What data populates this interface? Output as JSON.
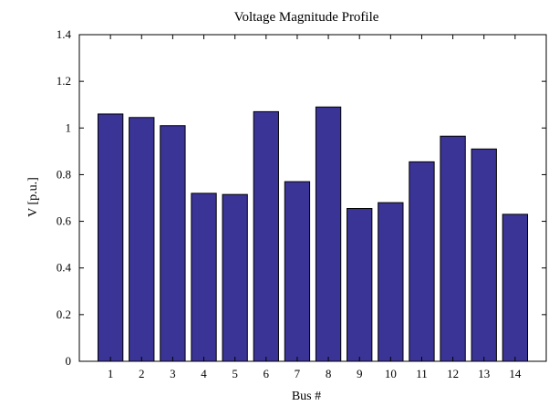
{
  "chart_data": {
    "type": "bar",
    "title": "Voltage Magnitude Profile",
    "xlabel": "Bus #",
    "ylabel": "V [p.u.]",
    "categories": [
      "1",
      "2",
      "3",
      "4",
      "5",
      "6",
      "7",
      "8",
      "9",
      "10",
      "11",
      "12",
      "13",
      "14"
    ],
    "values": [
      1.06,
      1.045,
      1.01,
      0.72,
      0.715,
      1.07,
      0.77,
      1.09,
      0.655,
      0.68,
      0.855,
      0.965,
      0.91,
      0.63
    ],
    "ylim": [
      0,
      1.4
    ],
    "yticks": [
      0,
      0.2,
      0.4,
      0.6,
      0.8,
      1,
      1.2,
      1.4
    ],
    "ytick_labels": [
      "0",
      "0.2",
      "0.4",
      "0.6",
      "0.8",
      "1",
      "1.2",
      "1.4"
    ],
    "bar_color": "#3a3496",
    "grid": false,
    "legend": false
  }
}
